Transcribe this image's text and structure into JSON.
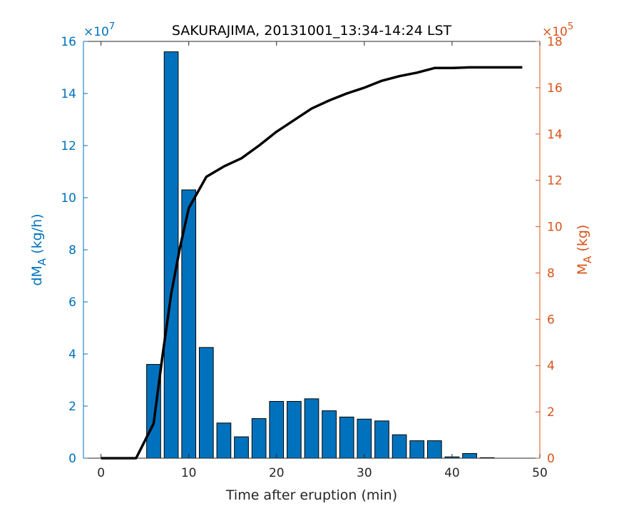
{
  "chart_data": {
    "type": "bar+line",
    "title": "SAKURAJIMA, 20131001_13:34-14:24 LST",
    "xlabel": "Time after eruption (min)",
    "xlim": [
      -2,
      50
    ],
    "xticks": [
      0,
      10,
      20,
      30,
      40,
      50
    ],
    "left_axis": {
      "label_main": "dM",
      "label_sub": "A",
      "label_unit": " (kg/h)",
      "exponent_label": "×10",
      "exponent_power": "7",
      "ylim": [
        0,
        16
      ],
      "ticks": [
        0,
        2,
        4,
        6,
        8,
        10,
        12,
        14,
        16
      ],
      "color": "#0072BD"
    },
    "right_axis": {
      "label_main": "M",
      "label_sub": "A",
      "label_unit": " (kg)",
      "exponent_label": "×10",
      "exponent_power": "5",
      "ylim": [
        0,
        18
      ],
      "ticks": [
        0,
        2,
        4,
        6,
        8,
        10,
        12,
        14,
        16,
        18
      ],
      "color": "#D95319"
    },
    "bars": {
      "color": "#0072BD",
      "x": [
        2,
        4,
        6,
        8,
        10,
        12,
        14,
        16,
        18,
        20,
        22,
        24,
        26,
        28,
        30,
        32,
        34,
        36,
        38,
        40,
        42,
        44,
        46
      ],
      "values": [
        0.0,
        0.0,
        3.6,
        15.6,
        10.3,
        4.25,
        1.35,
        0.82,
        1.52,
        2.18,
        2.18,
        2.28,
        1.82,
        1.58,
        1.5,
        1.43,
        0.9,
        0.67,
        0.67,
        0.05,
        0.18,
        0.02,
        0.0
      ]
    },
    "line": {
      "color": "#000000",
      "x": [
        0,
        2,
        4,
        6,
        7,
        8,
        9,
        10,
        12,
        14,
        16,
        18,
        20,
        22,
        24,
        26,
        28,
        30,
        32,
        34,
        36,
        38,
        40,
        42,
        44,
        46,
        48
      ],
      "values": [
        0.0,
        0.0,
        0.0,
        1.5,
        4.4,
        7.1,
        9.1,
        10.8,
        12.15,
        12.6,
        12.95,
        13.5,
        14.1,
        14.6,
        15.1,
        15.45,
        15.75,
        16.0,
        16.3,
        16.5,
        16.65,
        16.85,
        16.85,
        16.88,
        16.88,
        16.88,
        16.88
      ]
    }
  }
}
